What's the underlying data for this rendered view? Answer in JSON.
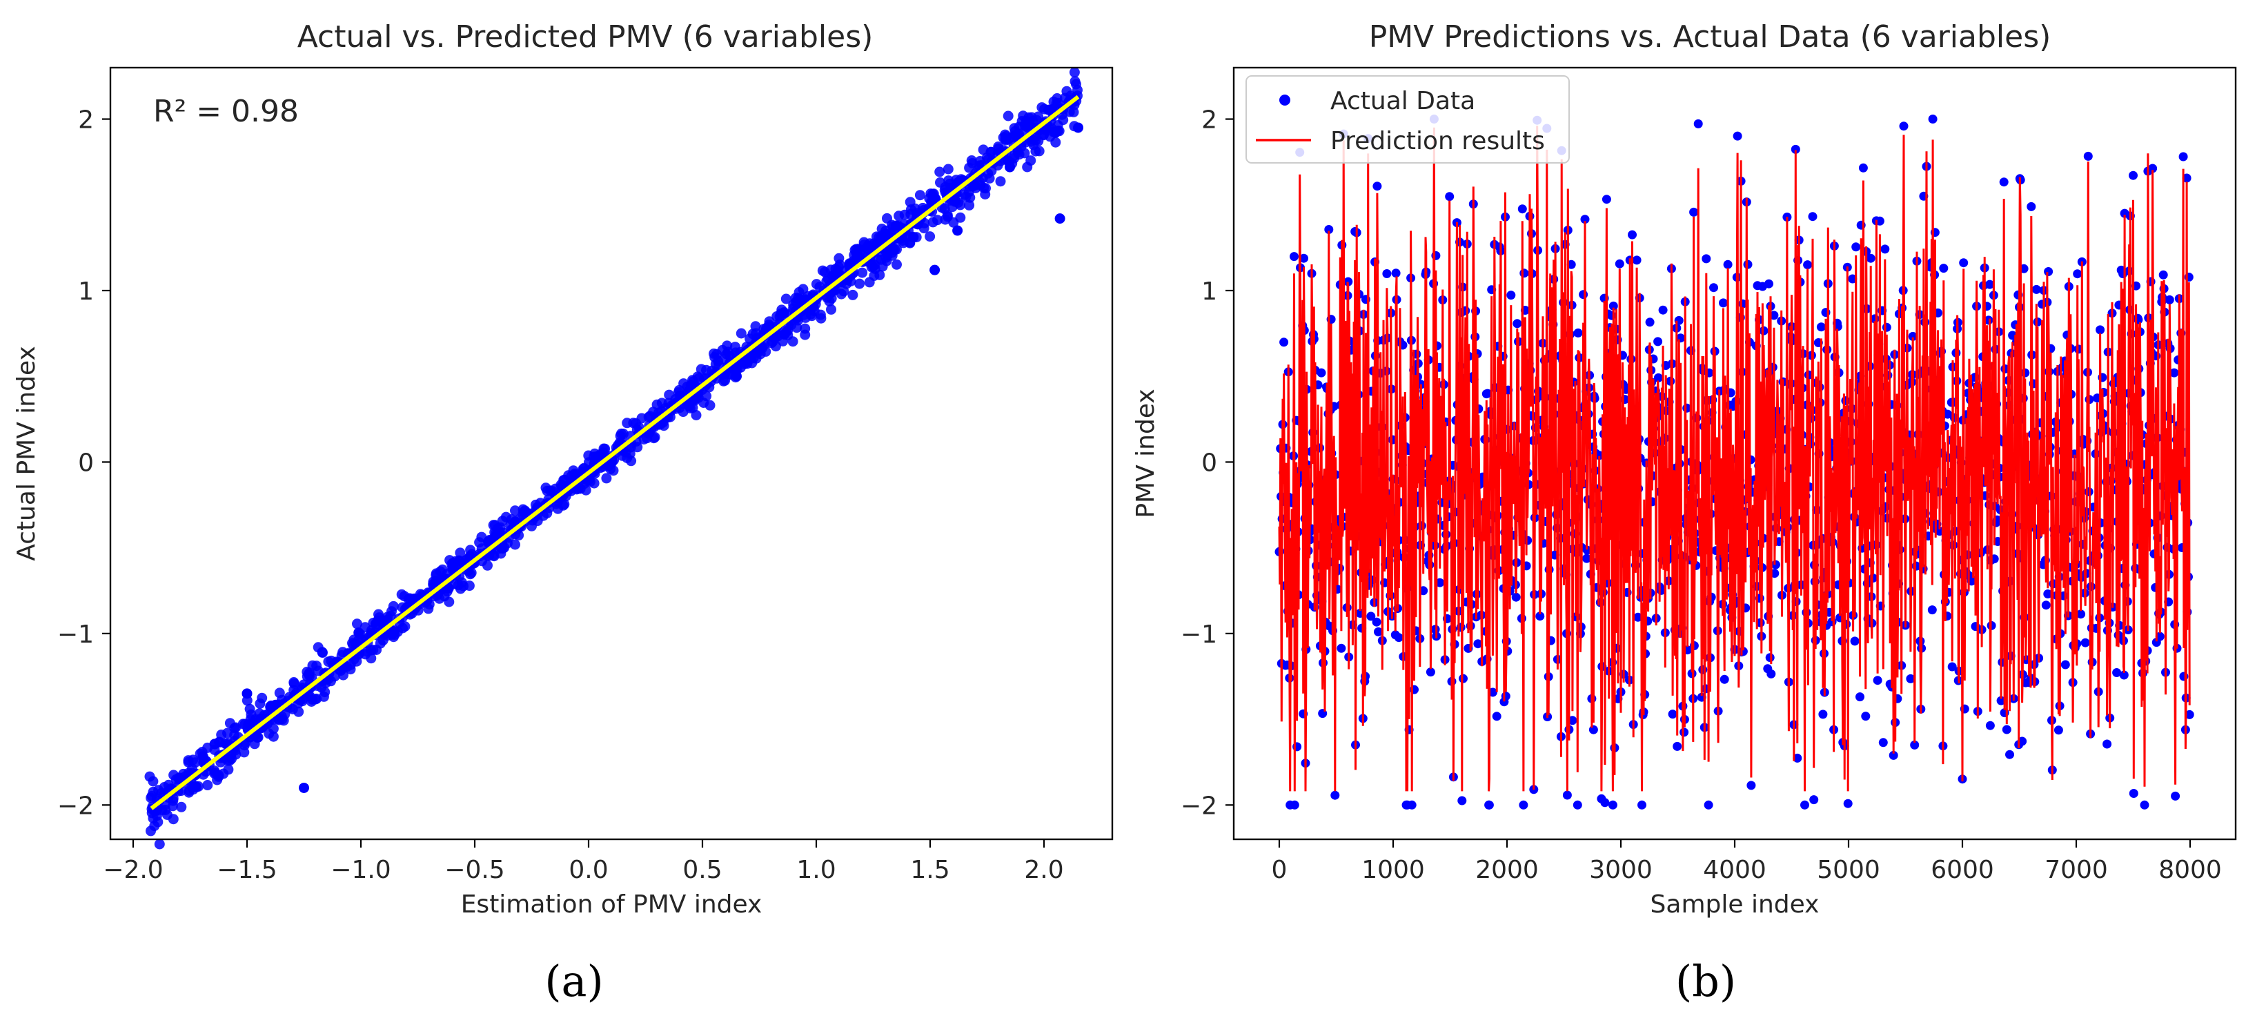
{
  "figure": {
    "colors": {
      "points": "#0000ff",
      "fit_line": "#ffff00",
      "prediction_line": "#ff0000",
      "axes": "#000000"
    }
  },
  "chart_data": [
    {
      "type": "scatter",
      "title": "Actual vs. Predicted PMV (6 variables)",
      "xlabel": "Estimation of PMV index",
      "ylabel": "Actual PMV index",
      "xlim": [
        -2.1,
        2.3
      ],
      "ylim": [
        -2.2,
        2.3
      ],
      "xticks": [
        -2.0,
        -1.5,
        -1.0,
        -0.5,
        0.0,
        0.5,
        1.0,
        1.5,
        2.0
      ],
      "xtick_labels": [
        "−2.0",
        "−1.5",
        "−1.0",
        "−0.5",
        "0.0",
        "0.5",
        "1.0",
        "1.5",
        "2.0"
      ],
      "yticks": [
        -2,
        -1,
        0,
        1,
        2
      ],
      "ytick_labels": [
        "−2",
        "−1",
        "0",
        "1",
        "2"
      ],
      "annotation": "R² = 0.98",
      "fit_line": {
        "x": [
          -1.92,
          2.15
        ],
        "y": [
          -2.02,
          2.13
        ]
      },
      "scatter_spread": 0.045,
      "x_range": [
        -1.93,
        2.15
      ],
      "outliers": [
        {
          "x": 2.07,
          "y": 1.42
        },
        {
          "x": 1.85,
          "y": 1.72
        },
        {
          "x": 2.05,
          "y": 1.92
        },
        {
          "x": 2.15,
          "y": 1.95
        },
        {
          "x": 1.52,
          "y": 1.12
        },
        {
          "x": -1.25,
          "y": -1.9
        },
        {
          "x": 1.62,
          "y": 1.35
        },
        {
          "x": -1.5,
          "y": -1.35
        },
        {
          "x": 0.65,
          "y": 0.5
        }
      ],
      "caption": "(a)",
      "grid": false
    },
    {
      "type": "line",
      "title": "PMV Predictions vs. Actual Data (6 variables)",
      "xlabel": "Sample index",
      "ylabel": "PMV index",
      "xlim": [
        -400,
        8400
      ],
      "ylim": [
        -2.2,
        2.3
      ],
      "xticks": [
        0,
        1000,
        2000,
        3000,
        4000,
        5000,
        6000,
        7000,
        8000
      ],
      "xtick_labels": [
        "0",
        "1000",
        "2000",
        "3000",
        "4000",
        "5000",
        "6000",
        "7000",
        "8000"
      ],
      "yticks": [
        -2,
        -1,
        0,
        1,
        2
      ],
      "ytick_labels": [
        "−2",
        "−1",
        "0",
        "1",
        "2"
      ],
      "n_samples": 8000,
      "value_range": [
        -2.0,
        2.15
      ],
      "series": [
        {
          "name": "Actual Data",
          "kind": "points"
        },
        {
          "name": "Prediction results",
          "kind": "line"
        }
      ],
      "legend": "upper-left",
      "caption": "(b)",
      "grid": false
    }
  ]
}
